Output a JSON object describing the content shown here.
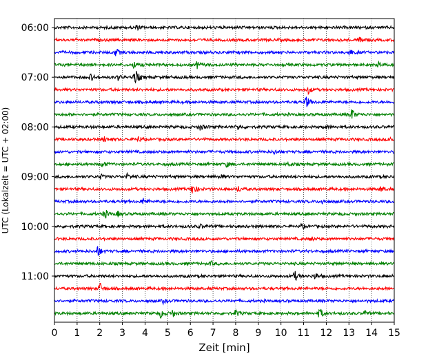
{
  "chart_data": {
    "type": "line",
    "title": "",
    "xlabel": "Zeit  [min]",
    "ylabel": "UTC (Lokalzeit = UTC + 02:00)",
    "xlim": [
      0,
      15
    ],
    "x_ticks": [
      0,
      1,
      2,
      3,
      4,
      5,
      6,
      7,
      8,
      9,
      10,
      11,
      12,
      13,
      14,
      15
    ],
    "grid": "vertical dotted at each minute",
    "y_tick_labels": [
      "06:00",
      "07:00",
      "08:00",
      "09:00",
      "10:00",
      "11:00"
    ],
    "trace_colors": [
      "#000000",
      "#ff0000",
      "#0000ff",
      "#008000"
    ],
    "traces": [
      {
        "start": "06:00",
        "events": [
          [
            3.6,
            0.35
          ]
        ]
      },
      {
        "start": "06:15",
        "events": [
          [
            13.5,
            0.5
          ]
        ]
      },
      {
        "start": "06:30",
        "events": [
          [
            2.7,
            0.6
          ],
          [
            13.0,
            0.6
          ]
        ]
      },
      {
        "start": "06:45",
        "events": [
          [
            3.5,
            0.6
          ],
          [
            6.3,
            0.5
          ],
          [
            14.3,
            0.4
          ]
        ]
      },
      {
        "start": "07:00",
        "events": [
          [
            1.6,
            0.5
          ],
          [
            2.8,
            0.4
          ],
          [
            3.5,
            0.5
          ],
          [
            3.6,
            0.8
          ]
        ]
      },
      {
        "start": "07:15",
        "events": [
          [
            11.2,
            0.6
          ]
        ]
      },
      {
        "start": "07:30",
        "events": [
          [
            11.1,
            1.0
          ]
        ]
      },
      {
        "start": "07:45",
        "events": [
          [
            13.1,
            1.0
          ]
        ]
      },
      {
        "start": "08:00",
        "events": [
          [
            6.4,
            0.55
          ],
          [
            8.1,
            0.4
          ],
          [
            11.9,
            0.45
          ]
        ]
      },
      {
        "start": "08:15",
        "events": [
          [
            2.2,
            0.4
          ],
          [
            3.7,
            0.4
          ],
          [
            14.8,
            0.4
          ]
        ]
      },
      {
        "start": "08:30",
        "events": [
          [
            9.7,
            0.3
          ]
        ]
      },
      {
        "start": "08:45",
        "events": [
          [
            2.1,
            0.5
          ],
          [
            7.6,
            0.4
          ],
          [
            10.3,
            0.35
          ]
        ]
      },
      {
        "start": "09:00",
        "events": [
          [
            2.0,
            0.4
          ],
          [
            3.2,
            0.4
          ],
          [
            7.3,
            0.4
          ]
        ]
      },
      {
        "start": "09:15",
        "events": [
          [
            6.1,
            1.0
          ],
          [
            8.1,
            0.5
          ],
          [
            14.4,
            0.4
          ]
        ]
      },
      {
        "start": "09:30",
        "events": [
          [
            3.9,
            0.5
          ],
          [
            11.8,
            0.35
          ]
        ]
      },
      {
        "start": "09:45",
        "events": [
          [
            2.2,
            0.85
          ],
          [
            2.8,
            0.4
          ]
        ]
      },
      {
        "start": "10:00",
        "events": [
          [
            6.4,
            0.35
          ],
          [
            10.9,
            0.35
          ]
        ]
      },
      {
        "start": "10:15",
        "events": [
          [
            11.3,
            0.3
          ]
        ]
      },
      {
        "start": "10:30",
        "events": [
          [
            1.9,
            0.9
          ]
        ]
      },
      {
        "start": "10:45",
        "events": [
          [
            6.9,
            0.3
          ]
        ]
      },
      {
        "start": "11:00",
        "events": [
          [
            10.6,
            0.8
          ],
          [
            11.5,
            0.5
          ]
        ]
      },
      {
        "start": "11:15",
        "events": [
          [
            2.0,
            0.9
          ]
        ]
      },
      {
        "start": "11:30",
        "events": [
          [
            4.8,
            0.3
          ]
        ]
      },
      {
        "start": "11:45",
        "events": [
          [
            4.7,
            0.7
          ],
          [
            5.2,
            0.6
          ],
          [
            8.0,
            0.5
          ],
          [
            11.7,
            0.9
          ],
          [
            13.7,
            0.4
          ]
        ]
      }
    ]
  }
}
